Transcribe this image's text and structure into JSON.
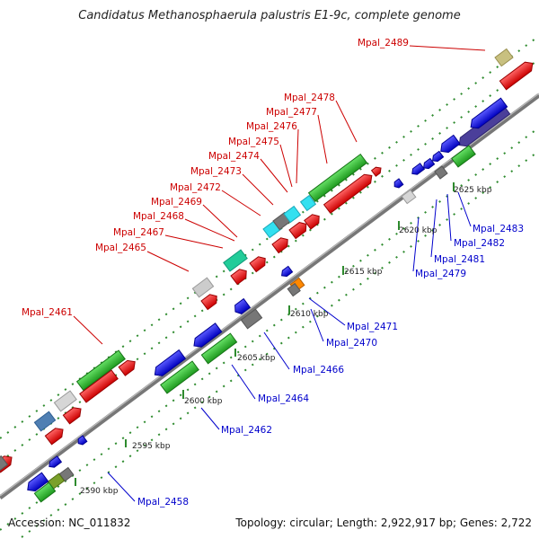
{
  "title": "Candidatus Methanosphaerula palustris E1-9c, complete genome",
  "footer": {
    "accession": "Accession: NC_011832",
    "summary": "Topology: circular; Length: 2,922,917 bp; Genes: 2,722"
  },
  "colors": {
    "forward_label": "#cc0000",
    "reverse_label": "#0000cc",
    "backbone": "#7a7a7a",
    "tick": "#2e8b2e"
  },
  "ticks": [
    "2590 kbp",
    "2595 kbp",
    "2600 kbp",
    "2605 kbp",
    "2610 kbp",
    "2615 kbp",
    "2620 kbp",
    "2625 kbp"
  ],
  "forward_genes": [
    "Mpal_2461",
    "Mpal_2465",
    "Mpal_2467",
    "Mpal_2468",
    "Mpal_2469",
    "Mpal_2472",
    "Mpal_2473",
    "Mpal_2474",
    "Mpal_2475",
    "Mpal_2476",
    "Mpal_2477",
    "Mpal_2478",
    "Mpal_2489"
  ],
  "reverse_genes": [
    "Mpal_2458",
    "Mpal_2462",
    "Mpal_2464",
    "Mpal_2466",
    "Mpal_2470",
    "Mpal_2471",
    "Mpal_2479",
    "Mpal_2481",
    "Mpal_2482",
    "Mpal_2483"
  ]
}
